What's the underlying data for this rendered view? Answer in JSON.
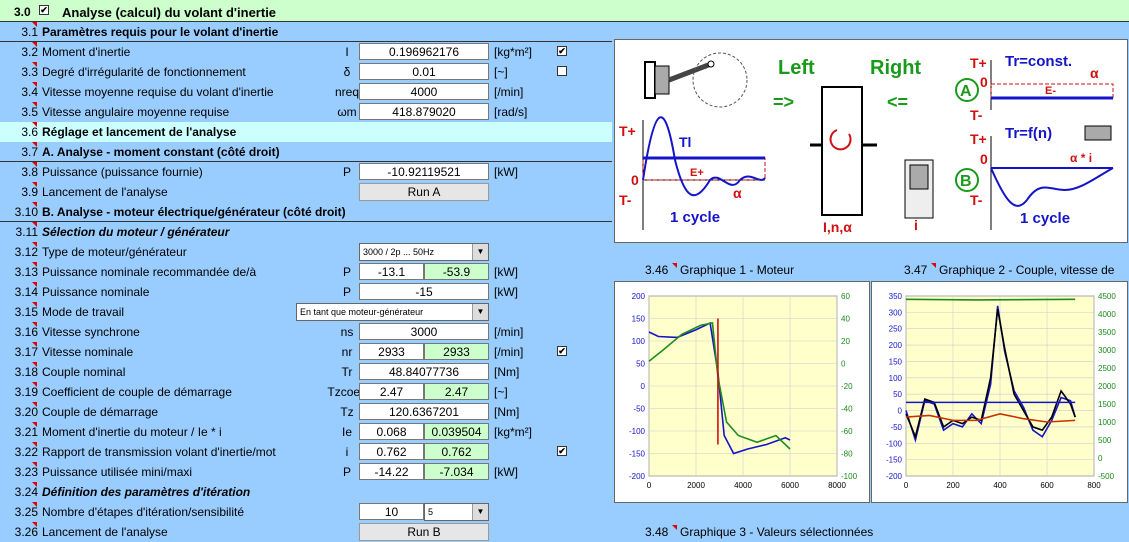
{
  "header": {
    "num": "3.0",
    "title": "Analyse (calcul) du volant d'inertie"
  },
  "rows": [
    {
      "num": "3.1",
      "label": "Paramètres requis pour le volant d'inertie"
    },
    {
      "num": "3.2",
      "label": "Moment d'inertie",
      "sym": "I",
      "value": "0.196962176",
      "unit": "[kg*m²]",
      "check": "✔"
    },
    {
      "num": "3.3",
      "label": "Degré d'irrégularité de fonctionnement",
      "sym": "δ",
      "value": "0.01",
      "unit": "[~]",
      "check": ""
    },
    {
      "num": "3.4",
      "label": "Vitesse moyenne requise du volant d'inertie",
      "sym": "nreq",
      "value": "4000",
      "unit": "[/min]"
    },
    {
      "num": "3.5",
      "label": "Vitesse angulaire moyenne requise",
      "sym": "ωm",
      "value": "418.879020",
      "unit": "[rad/s]"
    },
    {
      "num": "3.6",
      "label": "Réglage et lancement de l'analyse"
    },
    {
      "num": "3.7",
      "label": "A. Analyse - moment constant (côté droit)"
    },
    {
      "num": "3.8",
      "label": "Puissance (puissance fournie)",
      "sym": "P",
      "value": "-10.92119521",
      "unit": "[kW]"
    },
    {
      "num": "3.9",
      "label": "Lancement de l'analyse",
      "button": "Run A"
    },
    {
      "num": "3.10",
      "label": "B. Analyse - moteur électrique/générateur (côté droit)"
    },
    {
      "num": "3.11",
      "label": "Sélection du moteur / générateur"
    },
    {
      "num": "3.12",
      "label": "Type de moteur/générateur",
      "select": "3000 / 2p ... 50Hz"
    },
    {
      "num": "3.13",
      "label": "Puissance nominale recommandée de/à",
      "sym": "P",
      "v1": "-13.1",
      "v2": "-53.9",
      "unit": "[kW]"
    },
    {
      "num": "3.14",
      "label": "Puissance nominale",
      "sym": "P",
      "value": "-15",
      "unit": "[kW]"
    },
    {
      "num": "3.15",
      "label": "Mode de travail",
      "select": "En tant que moteur-générateur"
    },
    {
      "num": "3.16",
      "label": "Vitesse synchrone",
      "sym": "ns",
      "value": "3000",
      "unit": "[/min]"
    },
    {
      "num": "3.17",
      "label": "Vitesse nominale",
      "sym": "nr",
      "v1": "2933",
      "v2": "2933",
      "unit": "[/min]",
      "check": "✔"
    },
    {
      "num": "3.18",
      "label": "Couple nominal",
      "sym": "Tr",
      "value": "48.84077736",
      "unit": "[Nm]"
    },
    {
      "num": "3.19",
      "label": "Coefficient de couple de démarrage",
      "sym": "Tzcoeff",
      "v1": "2.47",
      "v2": "2.47",
      "unit": "[~]"
    },
    {
      "num": "3.20",
      "label": "Couple de démarrage",
      "sym": "Tz",
      "value": "120.6367201",
      "unit": "[Nm]"
    },
    {
      "num": "3.21",
      "label": "Moment d'inertie du moteur / Ie * i",
      "sym": "Ie",
      "v1": "0.068",
      "v2": "0.039504",
      "unit": "[kg*m²]"
    },
    {
      "num": "3.22",
      "label": "Rapport de transmission volant d'inertie/mot",
      "sym": "i",
      "v1": "0.762",
      "v2": "0.762",
      "check": "✔"
    },
    {
      "num": "3.23",
      "label": "Puissance utilisée mini/maxi",
      "sym": "P",
      "v1": "-14.22",
      "v2": "-7.034",
      "unit": "[kW]"
    },
    {
      "num": "3.24",
      "label": "Définition des paramètres d'itération"
    },
    {
      "num": "3.25",
      "label": "Nombre d'étapes d'itération/sensibilité",
      "v1": "10",
      "select2": "5"
    },
    {
      "num": "3.26",
      "label": "Lancement de l'analyse",
      "button": "Run B"
    }
  ],
  "diagram": {
    "left": "Left",
    "right": "Right",
    "arrow_left": "=>",
    "arrow_right": "<=",
    "tplus": "T+",
    "tminus": "T-",
    "zero": "0",
    "tl": "Tl",
    "eplus": "E+",
    "eminus": "E-",
    "alpha": "α",
    "alpha_i": "α * i",
    "cycle": "1 cycle",
    "mid": "I,n,α",
    "i": "i",
    "a": "A",
    "b": "B",
    "tr_const": "Tr=const.",
    "tr_fn": "Tr=f(n)"
  },
  "graphs": [
    {
      "num": "3.46",
      "title": "Graphique 1 - Moteur"
    },
    {
      "num": "3.47",
      "title": "Graphique 2 - Couple, vitesse de"
    },
    {
      "num": "3.48",
      "title": "Graphique 3 - Valeurs sélectionnées"
    }
  ],
  "chart_data": [
    {
      "type": "line",
      "title": "Graphique 1 - Moteur",
      "x_ticks": [
        "0",
        "2000",
        "4000",
        "6000",
        "8000"
      ],
      "y_left_ticks": [
        "200",
        "150",
        "100",
        "50",
        "0",
        "-50",
        "-100",
        "-150",
        "-200"
      ],
      "y_right_ticks": [
        "60",
        "40",
        "20",
        "0",
        "-20",
        "-40",
        "-60",
        "-80",
        "-100"
      ],
      "xlim": [
        0,
        8000
      ],
      "ylim": [
        -200,
        200
      ],
      "y2lim": [
        -100,
        60
      ],
      "series": [
        {
          "color": "#1414c8",
          "x": [
            0,
            400,
            1200,
            2000,
            2600,
            2933,
            3200,
            3600,
            4200,
            5000,
            5800,
            6000
          ],
          "y": [
            120,
            110,
            108,
            125,
            140,
            30,
            -110,
            -150,
            -140,
            -130,
            -115,
            -120
          ]
        },
        {
          "color": "#1e8c1e",
          "x": [
            0,
            600,
            1400,
            2200,
            2700,
            2933,
            3300,
            3800,
            4600,
            5400,
            6000
          ],
          "y": [
            55,
            80,
            115,
            135,
            140,
            20,
            -80,
            -110,
            -125,
            -110,
            -140
          ]
        },
        {
          "color": "#d01010",
          "x": [
            2933,
            2933
          ],
          "y": [
            150,
            -130
          ]
        }
      ]
    },
    {
      "type": "line",
      "title": "Graphique 2 - Couple, vitesse de",
      "x_ticks": [
        "0",
        "200",
        "400",
        "600",
        "800"
      ],
      "y_left_ticks": [
        "350",
        "300",
        "250",
        "200",
        "150",
        "100",
        "50",
        "0",
        "-50",
        "-100",
        "-150",
        "-200"
      ],
      "y_right_ticks": [
        "4500",
        "4000",
        "3500",
        "3000",
        "2500",
        "2000",
        "1500",
        "1000",
        "500",
        "0",
        "-500"
      ],
      "xlim": [
        0,
        800
      ],
      "ylim": [
        -200,
        350
      ],
      "y2lim": [
        -500,
        4500
      ],
      "series": [
        {
          "color": "#1e8c1e",
          "x": [
            0,
            300,
            720
          ],
          "y": [
            340,
            338,
            340
          ]
        },
        {
          "color": "#1414c8",
          "x": [
            0,
            40,
            80,
            120,
            160,
            200,
            240,
            280,
            320,
            360,
            390,
            420,
            460,
            500,
            540,
            580,
            620,
            660,
            700,
            720
          ],
          "y": [
            0,
            -90,
            30,
            20,
            -60,
            -40,
            -50,
            -10,
            -40,
            80,
            320,
            180,
            60,
            10,
            -60,
            -80,
            -30,
            40,
            30,
            -20
          ]
        },
        {
          "color": "#000000",
          "x": [
            0,
            40,
            80,
            120,
            160,
            200,
            240,
            280,
            320,
            360,
            390,
            420,
            460,
            500,
            540,
            580,
            620,
            660,
            700,
            720
          ],
          "y": [
            -10,
            -80,
            35,
            25,
            -50,
            -30,
            -40,
            -20,
            -30,
            100,
            310,
            190,
            50,
            0,
            -50,
            -60,
            -20,
            60,
            20,
            -20
          ]
        },
        {
          "color": "#c83200",
          "x": [
            0,
            100,
            200,
            300,
            400,
            500,
            600,
            720
          ],
          "y": [
            -20,
            -15,
            -30,
            -30,
            -10,
            -25,
            -35,
            -30
          ]
        },
        {
          "color": "#1414c8",
          "x": [
            0,
            720
          ],
          "y": [
            25,
            25
          ]
        }
      ]
    }
  ]
}
